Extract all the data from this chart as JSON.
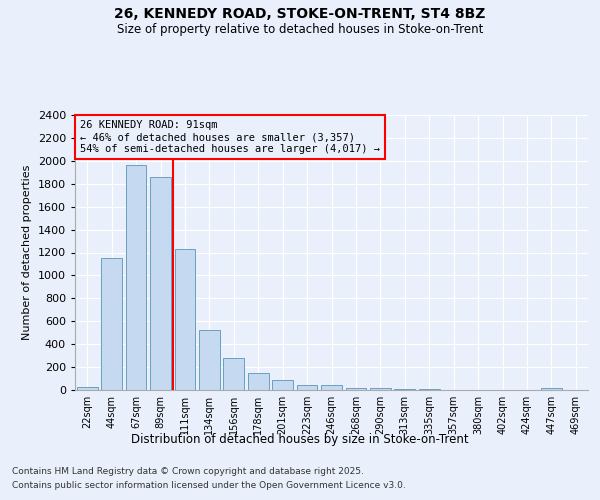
{
  "title1": "26, KENNEDY ROAD, STOKE-ON-TRENT, ST4 8BZ",
  "title2": "Size of property relative to detached houses in Stoke-on-Trent",
  "xlabel": "Distribution of detached houses by size in Stoke-on-Trent",
  "ylabel": "Number of detached properties",
  "bin_labels": [
    "22sqm",
    "44sqm",
    "67sqm",
    "89sqm",
    "111sqm",
    "134sqm",
    "156sqm",
    "178sqm",
    "201sqm",
    "223sqm",
    "246sqm",
    "268sqm",
    "290sqm",
    "313sqm",
    "335sqm",
    "357sqm",
    "380sqm",
    "402sqm",
    "424sqm",
    "447sqm",
    "469sqm"
  ],
  "bar_values": [
    25,
    1155,
    1965,
    1855,
    1230,
    520,
    275,
    150,
    90,
    45,
    45,
    20,
    15,
    8,
    5,
    3,
    2,
    2,
    1,
    15,
    0
  ],
  "bar_color": "#c5d9f1",
  "bar_edgecolor": "#6a9fc0",
  "annotation_text": "26 KENNEDY ROAD: 91sqm\n← 46% of detached houses are smaller (3,357)\n54% of semi-detached houses are larger (4,017) →",
  "annotation_box_edgecolor": "red",
  "vline_color": "red",
  "footer1": "Contains HM Land Registry data © Crown copyright and database right 2025.",
  "footer2": "Contains public sector information licensed under the Open Government Licence v3.0.",
  "bg_color": "#eaf0fb",
  "ylim": [
    0,
    2400
  ],
  "yticks": [
    0,
    200,
    400,
    600,
    800,
    1000,
    1200,
    1400,
    1600,
    1800,
    2000,
    2200,
    2400
  ]
}
